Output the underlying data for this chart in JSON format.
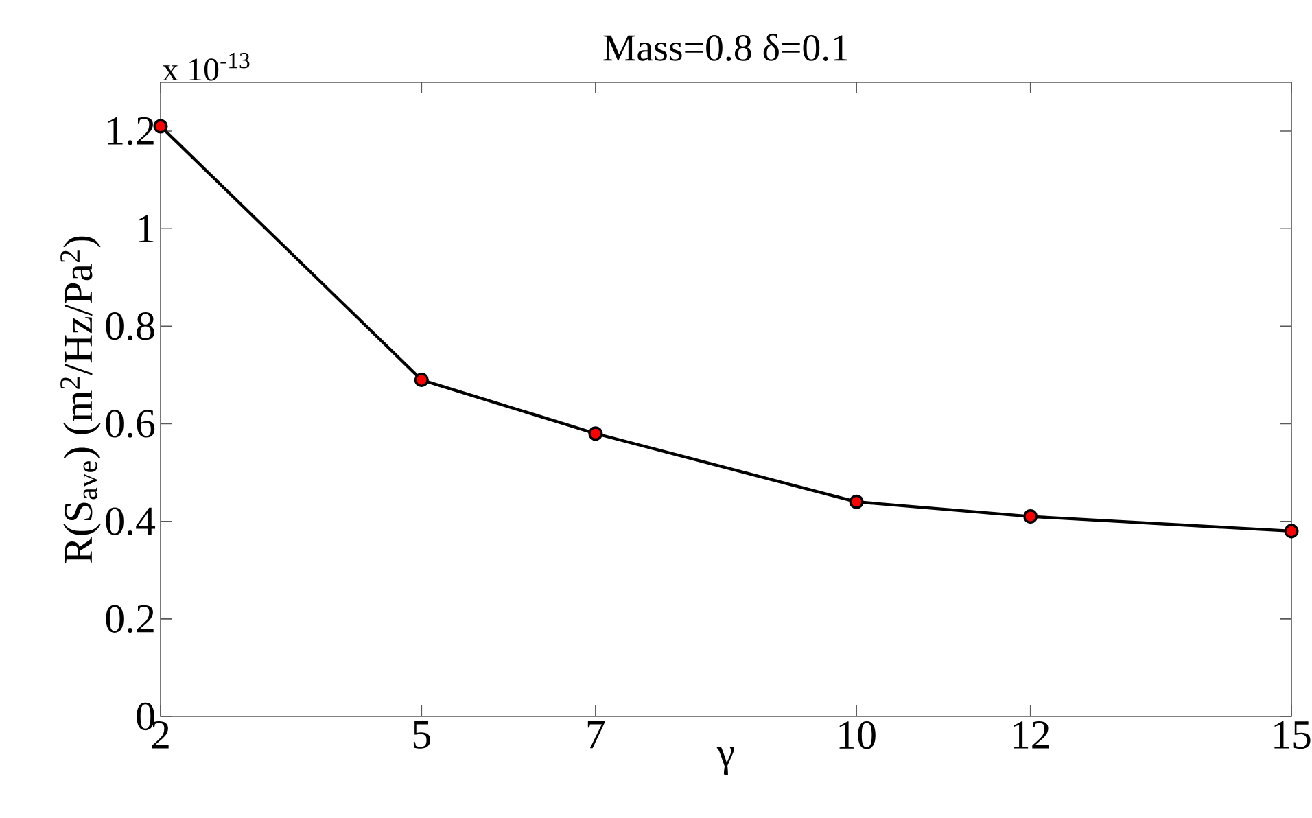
{
  "chart_data": {
    "type": "line",
    "title": "Mass=0.8  δ=0.1",
    "xlabel": "γ",
    "ylabel": "R(S$_{ave}$) (m$^{2}$/Hz/Pa$^{2}$)",
    "annotations": [
      "x 10$^{-13}$"
    ],
    "x": [
      2,
      5,
      7,
      10,
      12,
      15
    ],
    "series": [
      {
        "color": "#000000",
        "colors": [
          "#ff0000",
          "#ff0000",
          "#ff0000",
          "#ff0000",
          "#ff0000",
          "#ff0000"
        ],
        "values": [
          1.21,
          0.69,
          0.58,
          0.44,
          0.41,
          0.38
        ]
      }
    ],
    "xlim": [
      2,
      15
    ],
    "xticks": [
      2,
      5,
      7,
      10,
      12,
      15
    ],
    "ylim": [
      0,
      1.3
    ],
    "yticks": [
      0,
      0.2,
      0.4,
      0.6,
      0.8,
      1,
      1.2
    ],
    "marker": "circle",
    "line_style": "solid"
  }
}
